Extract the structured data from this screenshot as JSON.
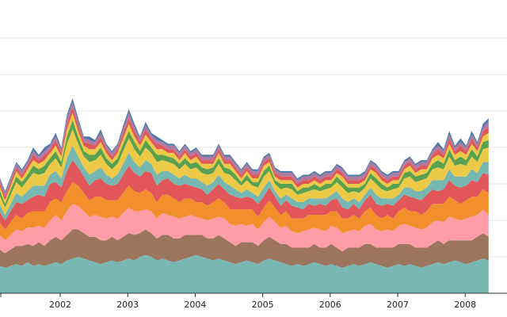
{
  "chart_data": {
    "type": "area",
    "stacked": true,
    "title": "",
    "xlabel": "",
    "ylabel": "",
    "x_tick_labels": [
      "2002",
      "2003",
      "2004",
      "2005",
      "2006",
      "2007",
      "2008"
    ],
    "x_tick_years": [
      2002,
      2003,
      2004,
      2005,
      2006,
      2007,
      2008
    ],
    "x_start_year": 2001.1,
    "x_step_years": 0.0833,
    "y_max_total": 100,
    "grid": {
      "y": true,
      "x": false
    },
    "legend": "none",
    "series": [
      {
        "color": "#79b7b2",
        "values": [
          15,
          14,
          15,
          16,
          15,
          17,
          15,
          16,
          15,
          16,
          17,
          16,
          18,
          19,
          20,
          19,
          18,
          17,
          16,
          17,
          18,
          17,
          18,
          19,
          18,
          20,
          21,
          20,
          18,
          19,
          18,
          17,
          18,
          19,
          20,
          21,
          20,
          19,
          18,
          19,
          18,
          17,
          16,
          17,
          18,
          17,
          16,
          18,
          19,
          18,
          17,
          16,
          15,
          16,
          15,
          16,
          17,
          16,
          15,
          16,
          15,
          14,
          15,
          16,
          15,
          16,
          17,
          16,
          15,
          14,
          15,
          16,
          15,
          16,
          15,
          14,
          15,
          16,
          17,
          16,
          17,
          18,
          17,
          16,
          17,
          18,
          19,
          18
        ]
      },
      {
        "color": "#9c755f",
        "values": [
          9,
          8,
          9,
          10,
          11,
          10,
          11,
          12,
          11,
          13,
          14,
          13,
          14,
          16,
          15,
          14,
          13,
          14,
          13,
          12,
          13,
          12,
          13,
          14,
          14,
          13,
          14,
          13,
          12,
          13,
          14,
          13,
          12,
          13,
          12,
          11,
          12,
          11,
          12,
          13,
          12,
          11,
          10,
          11,
          10,
          11,
          10,
          11,
          12,
          11,
          10,
          11,
          10,
          9,
          10,
          9,
          10,
          9,
          10,
          11,
          10,
          9,
          10,
          9,
          10,
          11,
          10,
          9,
          10,
          11,
          10,
          11,
          12,
          11,
          10,
          11,
          10,
          11,
          12,
          11,
          12,
          11,
          12,
          13,
          12,
          13,
          14,
          13
        ]
      },
      {
        "color": "#ff9da7",
        "values": [
          8,
          7,
          8,
          9,
          8,
          9,
          10,
          9,
          10,
          11,
          12,
          11,
          13,
          14,
          13,
          12,
          11,
          12,
          13,
          12,
          11,
          12,
          13,
          14,
          13,
          12,
          11,
          12,
          11,
          12,
          11,
          12,
          11,
          10,
          11,
          10,
          9,
          10,
          11,
          10,
          11,
          10,
          11,
          10,
          9,
          10,
          9,
          10,
          11,
          10,
          9,
          10,
          9,
          8,
          9,
          10,
          9,
          10,
          9,
          10,
          11,
          10,
          9,
          10,
          9,
          10,
          11,
          10,
          9,
          10,
          9,
          10,
          11,
          10,
          11,
          10,
          11,
          12,
          11,
          12,
          13,
          12,
          11,
          12,
          13,
          12,
          13,
          12
        ]
      },
      {
        "color": "#f28e2b",
        "values": [
          7,
          6,
          7,
          8,
          7,
          8,
          9,
          8,
          9,
          10,
          9,
          10,
          11,
          12,
          11,
          10,
          9,
          10,
          11,
          10,
          9,
          10,
          11,
          12,
          11,
          10,
          11,
          10,
          9,
          10,
          11,
          10,
          9,
          10,
          9,
          8,
          9,
          8,
          9,
          10,
          9,
          8,
          9,
          8,
          9,
          8,
          7,
          8,
          9,
          8,
          7,
          8,
          7,
          8,
          7,
          8,
          7,
          8,
          9,
          8,
          9,
          8,
          7,
          8,
          7,
          8,
          9,
          8,
          7,
          8,
          7,
          8,
          9,
          8,
          9,
          8,
          9,
          10,
          9,
          10,
          11,
          10,
          9,
          10,
          11,
          10,
          11,
          12
        ]
      },
      {
        "color": "#e15759",
        "values": [
          6,
          5,
          6,
          7,
          8,
          7,
          8,
          9,
          8,
          10,
          9,
          8,
          11,
          12,
          10,
          9,
          8,
          9,
          10,
          9,
          8,
          9,
          10,
          11,
          10,
          9,
          10,
          11,
          9,
          8,
          9,
          8,
          9,
          8,
          7,
          8,
          7,
          6,
          7,
          8,
          7,
          8,
          7,
          6,
          7,
          6,
          7,
          6,
          7,
          6,
          5,
          6,
          7,
          6,
          5,
          6,
          5,
          6,
          5,
          6,
          7,
          6,
          5,
          6,
          5,
          6,
          7,
          6,
          7,
          6,
          7,
          6,
          7,
          8,
          7,
          8,
          9,
          8,
          7,
          8,
          9,
          8,
          9,
          8,
          9,
          8,
          9,
          10
        ]
      },
      {
        "color": "#76b7b2",
        "values": [
          4,
          3,
          4,
          5,
          4,
          5,
          6,
          5,
          6,
          5,
          6,
          5,
          7,
          8,
          6,
          5,
          6,
          5,
          6,
          5,
          4,
          5,
          6,
          7,
          6,
          5,
          6,
          5,
          6,
          5,
          4,
          5,
          4,
          5,
          4,
          5,
          4,
          5,
          4,
          5,
          4,
          5,
          4,
          3,
          4,
          3,
          4,
          5,
          4,
          3,
          4,
          3,
          4,
          3,
          4,
          3,
          4,
          3,
          4,
          3,
          4,
          5,
          4,
          3,
          4,
          3,
          4,
          5,
          4,
          3,
          4,
          3,
          4,
          5,
          4,
          5,
          4,
          5,
          6,
          5,
          6,
          5,
          6,
          5,
          6,
          5,
          6,
          7
        ]
      },
      {
        "color": "#edc948",
        "values": [
          5,
          4,
          5,
          6,
          5,
          6,
          7,
          6,
          7,
          6,
          7,
          6,
          8,
          9,
          7,
          6,
          7,
          6,
          7,
          6,
          5,
          6,
          7,
          8,
          7,
          6,
          7,
          6,
          7,
          6,
          5,
          6,
          5,
          6,
          5,
          6,
          5,
          6,
          5,
          6,
          5,
          6,
          5,
          4,
          5,
          4,
          5,
          6,
          5,
          4,
          5,
          4,
          5,
          4,
          5,
          4,
          5,
          4,
          5,
          4,
          5,
          6,
          5,
          4,
          5,
          4,
          5,
          6,
          5,
          4,
          5,
          4,
          5,
          6,
          5,
          6,
          5,
          6,
          7,
          6,
          7,
          6,
          7,
          6,
          7,
          6,
          7,
          8
        ]
      },
      {
        "color": "#59a14f",
        "values": [
          3,
          2,
          3,
          3,
          3,
          3,
          4,
          3,
          4,
          3,
          4,
          3,
          4,
          5,
          4,
          3,
          4,
          3,
          4,
          3,
          3,
          3,
          4,
          4,
          4,
          3,
          4,
          3,
          4,
          3,
          3,
          3,
          3,
          3,
          3,
          3,
          3,
          3,
          3,
          3,
          3,
          3,
          3,
          2,
          3,
          2,
          3,
          3,
          3,
          2,
          3,
          2,
          3,
          2,
          3,
          2,
          3,
          2,
          3,
          2,
          3,
          3,
          3,
          2,
          3,
          2,
          3,
          3,
          3,
          2,
          3,
          2,
          3,
          3,
          3,
          3,
          3,
          3,
          4,
          3,
          4,
          3,
          4,
          3,
          4,
          3,
          4,
          4
        ]
      },
      {
        "color": "#edc948",
        "values": [
          2,
          2,
          2,
          3,
          2,
          3,
          3,
          3,
          3,
          3,
          3,
          3,
          4,
          4,
          3,
          3,
          3,
          3,
          3,
          3,
          2,
          3,
          3,
          4,
          3,
          3,
          3,
          3,
          3,
          3,
          2,
          3,
          2,
          3,
          2,
          3,
          2,
          3,
          2,
          3,
          2,
          3,
          2,
          2,
          2,
          2,
          2,
          3,
          2,
          2,
          2,
          2,
          2,
          2,
          2,
          2,
          2,
          2,
          2,
          2,
          2,
          3,
          2,
          2,
          2,
          2,
          2,
          3,
          2,
          2,
          2,
          2,
          2,
          3,
          2,
          3,
          2,
          3,
          3,
          3,
          3,
          3,
          3,
          3,
          3,
          3,
          3,
          4
        ]
      },
      {
        "color": "#e15759",
        "values": [
          2,
          2,
          2,
          2,
          2,
          2,
          3,
          2,
          3,
          2,
          3,
          2,
          3,
          3,
          3,
          2,
          3,
          2,
          3,
          2,
          2,
          2,
          3,
          3,
          3,
          2,
          3,
          2,
          3,
          2,
          2,
          2,
          2,
          2,
          2,
          2,
          2,
          2,
          2,
          2,
          2,
          2,
          2,
          2,
          2,
          2,
          2,
          2,
          2,
          2,
          2,
          2,
          2,
          2,
          2,
          2,
          2,
          2,
          2,
          2,
          2,
          2,
          2,
          2,
          2,
          2,
          2,
          2,
          2,
          2,
          2,
          2,
          2,
          2,
          2,
          2,
          2,
          2,
          3,
          2,
          3,
          2,
          3,
          2,
          3,
          2,
          3,
          3
        ]
      },
      {
        "color": "#b07aa1",
        "values": [
          2,
          2,
          2,
          2,
          2,
          2,
          2,
          2,
          2,
          2,
          2,
          2,
          3,
          3,
          2,
          2,
          2,
          2,
          2,
          2,
          2,
          2,
          2,
          3,
          2,
          2,
          2,
          2,
          2,
          2,
          2,
          2,
          2,
          2,
          2,
          2,
          2,
          2,
          2,
          2,
          2,
          2,
          2,
          2,
          2,
          2,
          2,
          2,
          2,
          2,
          2,
          2,
          2,
          2,
          2,
          2,
          2,
          2,
          2,
          2,
          2,
          2,
          2,
          2,
          2,
          2,
          2,
          2,
          2,
          2,
          2,
          2,
          2,
          2,
          2,
          2,
          2,
          2,
          2,
          2,
          2,
          2,
          2,
          2,
          2,
          2,
          2,
          3
        ]
      },
      {
        "color": "#4e79a7",
        "values": [
          1,
          1,
          1,
          1,
          1,
          1,
          2,
          1,
          2,
          1,
          2,
          1,
          2,
          2,
          2,
          1,
          2,
          1,
          2,
          1,
          1,
          1,
          2,
          2,
          2,
          1,
          2,
          1,
          2,
          1,
          1,
          1,
          1,
          1,
          1,
          1,
          1,
          1,
          1,
          1,
          1,
          1,
          1,
          1,
          1,
          1,
          1,
          1,
          1,
          1,
          1,
          1,
          1,
          1,
          1,
          1,
          1,
          1,
          1,
          1,
          1,
          1,
          1,
          1,
          1,
          1,
          1,
          1,
          1,
          1,
          1,
          1,
          1,
          1,
          1,
          1,
          1,
          1,
          2,
          1,
          2,
          1,
          2,
          1,
          2,
          1,
          2,
          2
        ]
      }
    ]
  }
}
